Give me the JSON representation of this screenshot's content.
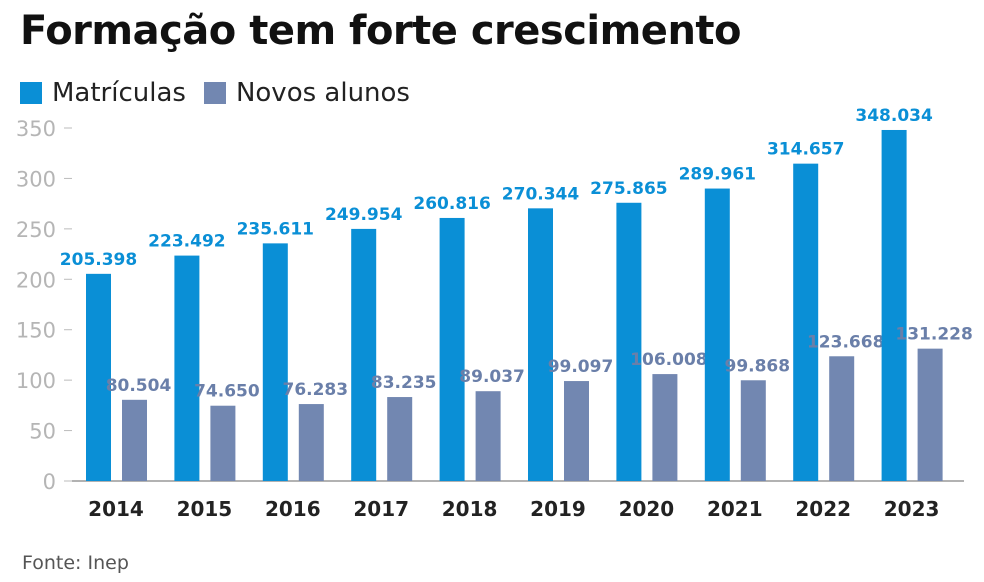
{
  "chart_data": {
    "type": "bar",
    "title": "Formação tem forte crescimento",
    "categories": [
      "2014",
      "2015",
      "2016",
      "2017",
      "2018",
      "2019",
      "2020",
      "2021",
      "2022",
      "2023"
    ],
    "series": [
      {
        "name": "Matrículas",
        "color": "#0a8fd6",
        "values": [
          205.398,
          223.492,
          235.611,
          249.954,
          260.816,
          270.344,
          275.865,
          289.961,
          314.657,
          348.034
        ],
        "labels": [
          "205.398",
          "223.492",
          "235.611",
          "249.954",
          "260.816",
          "270.344",
          "275.865",
          "289.961",
          "314.657",
          "348.034"
        ]
      },
      {
        "name": "Novos alunos",
        "color": "#7287b1",
        "values": [
          80.504,
          74.65,
          76.283,
          83.235,
          89.037,
          99.097,
          106.008,
          99.868,
          123.668,
          131.228
        ],
        "labels": [
          "80.504",
          "74.650",
          "76.283",
          "83.235",
          "89.037",
          "99.097",
          "106.008",
          "99.868",
          "123.668",
          "131.228"
        ]
      }
    ],
    "yticks": [
      0,
      50,
      100,
      150,
      200,
      250,
      300,
      350
    ],
    "ylim": [
      0,
      350
    ],
    "legend": "top-left",
    "grid": false
  },
  "source": "Fonte: Inep"
}
